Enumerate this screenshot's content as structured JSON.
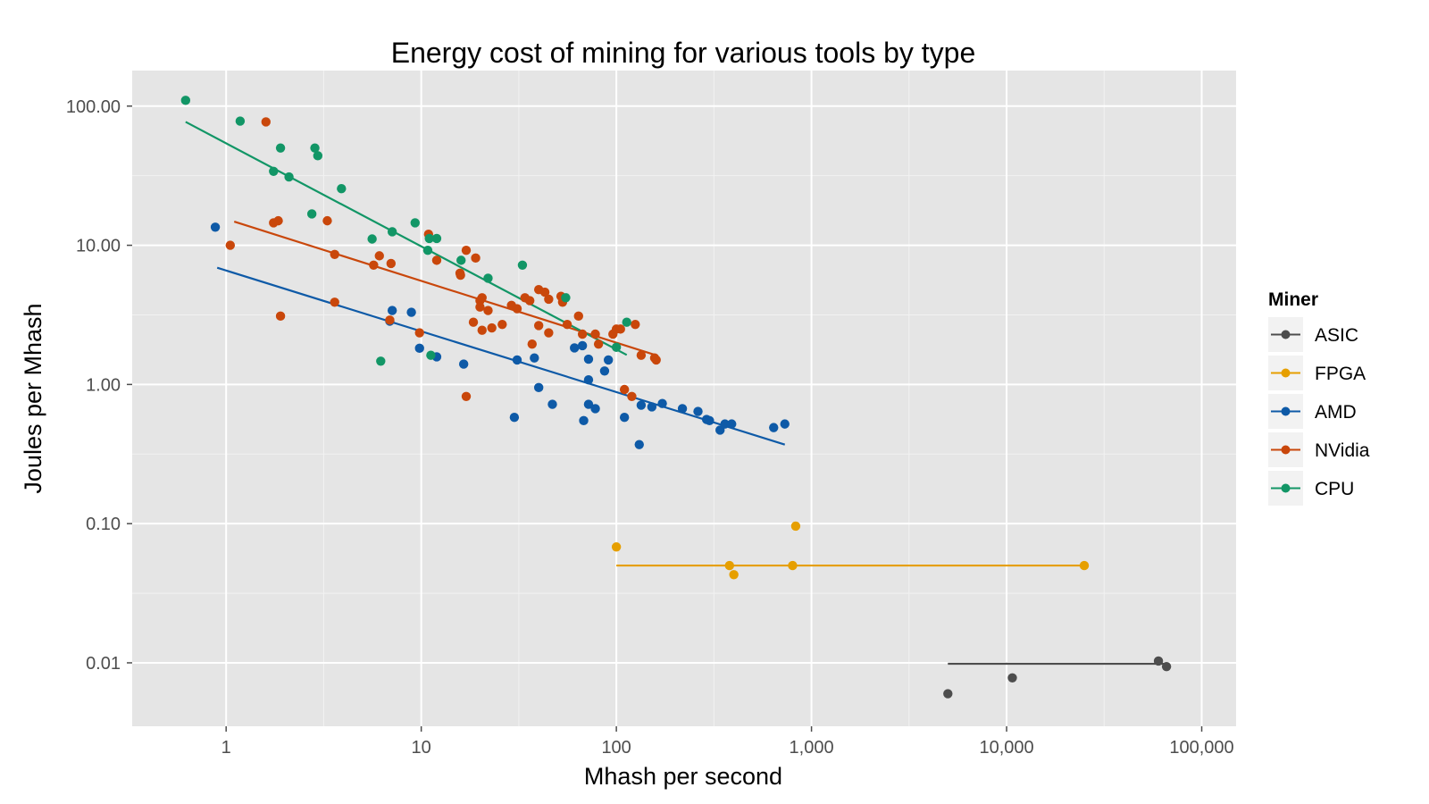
{
  "chart_data": {
    "type": "scatter",
    "title": "Energy cost of mining for various tools by type",
    "xlabel": "Mhash per second",
    "ylabel": "Joules per Mhash",
    "x_scale": "log10",
    "y_scale": "log10",
    "xlim": [
      0.33,
      150000
    ],
    "ylim": [
      0.0035,
      180
    ],
    "x_ticks": [
      1,
      10,
      100,
      1000,
      10000,
      100000
    ],
    "x_tick_labels": [
      "1",
      "10",
      "100",
      "1,000",
      "10,000",
      "100,000"
    ],
    "y_ticks": [
      0.01,
      0.1,
      1,
      10,
      100
    ],
    "y_tick_labels": [
      "0.01",
      "0.10",
      "1.00",
      "10.00",
      "100.00"
    ],
    "grid": true,
    "legend": {
      "title": "Miner",
      "position": "right"
    },
    "series": [
      {
        "name": "ASIC",
        "color": "#4d4d4d",
        "fit": [
          [
            5000,
            0.00985
          ],
          [
            66000,
            0.00985
          ]
        ],
        "points": [
          [
            5000,
            0.006
          ],
          [
            10700,
            0.0078
          ],
          [
            60000,
            0.0103
          ],
          [
            66000,
            0.0094
          ]
        ]
      },
      {
        "name": "FPGA",
        "color": "#e69f00",
        "fit": [
          [
            100,
            0.05
          ],
          [
            25000,
            0.05
          ]
        ],
        "points": [
          [
            100,
            0.068
          ],
          [
            380,
            0.05
          ],
          [
            400,
            0.043
          ],
          [
            800,
            0.05
          ],
          [
            830,
            0.096
          ],
          [
            25000,
            0.05
          ]
        ]
      },
      {
        "name": "AMD",
        "color": "#0e5aa7",
        "fit": [
          [
            0.9,
            6.9
          ],
          [
            730,
            0.37
          ]
        ],
        "points": [
          [
            0.88,
            13.5
          ],
          [
            7.1,
            3.4
          ],
          [
            8.9,
            3.3
          ],
          [
            6.9,
            2.85
          ],
          [
            9.8,
            1.82
          ],
          [
            12,
            1.58
          ],
          [
            16.5,
            1.4
          ],
          [
            30,
            0.58
          ],
          [
            31,
            1.5
          ],
          [
            38,
            1.55
          ],
          [
            40,
            0.95
          ],
          [
            47,
            0.72
          ],
          [
            61,
            1.83
          ],
          [
            67,
            1.9
          ],
          [
            72,
            1.52
          ],
          [
            72,
            1.08
          ],
          [
            72,
            0.72
          ],
          [
            68,
            0.55
          ],
          [
            78,
            0.67
          ],
          [
            87,
            1.25
          ],
          [
            91,
            1.5
          ],
          [
            110,
            0.58
          ],
          [
            131,
            0.37
          ],
          [
            134,
            0.71
          ],
          [
            152,
            0.69
          ],
          [
            172,
            0.73
          ],
          [
            218,
            0.67
          ],
          [
            262,
            0.64
          ],
          [
            290,
            0.56
          ],
          [
            300,
            0.55
          ],
          [
            340,
            0.47
          ],
          [
            360,
            0.52
          ],
          [
            390,
            0.52
          ],
          [
            640,
            0.49
          ],
          [
            730,
            0.52
          ]
        ]
      },
      {
        "name": "NVidia",
        "color": "#c9470b",
        "fit": [
          [
            1.1,
            14.8
          ],
          [
            160,
            1.62
          ]
        ],
        "points": [
          [
            1.05,
            10
          ],
          [
            1.6,
            77
          ],
          [
            1.75,
            14.5
          ],
          [
            1.85,
            15
          ],
          [
            1.9,
            3.1
          ],
          [
            3.3,
            15
          ],
          [
            3.6,
            8.6
          ],
          [
            3.6,
            3.9
          ],
          [
            5.7,
            7.2
          ],
          [
            6.1,
            8.4
          ],
          [
            7,
            7.4
          ],
          [
            6.9,
            2.9
          ],
          [
            9.8,
            2.35
          ],
          [
            10.9,
            12
          ],
          [
            12,
            7.8
          ],
          [
            15.8,
            6.3
          ],
          [
            15.9,
            6.1
          ],
          [
            17,
            9.2
          ],
          [
            17,
            0.82
          ],
          [
            18.5,
            2.8
          ],
          [
            19,
            8.1
          ],
          [
            20,
            4
          ],
          [
            20,
            3.6
          ],
          [
            20.5,
            4.2
          ],
          [
            20.5,
            2.45
          ],
          [
            22,
            3.4
          ],
          [
            23,
            2.55
          ],
          [
            26,
            2.7
          ],
          [
            29,
            3.7
          ],
          [
            31,
            3.5
          ],
          [
            34,
            4.2
          ],
          [
            36,
            4
          ],
          [
            37,
            1.95
          ],
          [
            40,
            2.65
          ],
          [
            40,
            4.8
          ],
          [
            43,
            4.6
          ],
          [
            45,
            4.1
          ],
          [
            45,
            2.35
          ],
          [
            52,
            4.3
          ],
          [
            53,
            3.9
          ],
          [
            56,
            2.7
          ],
          [
            64,
            3.1
          ],
          [
            67,
            2.3
          ],
          [
            78,
            2.3
          ],
          [
            81,
            1.95
          ],
          [
            96,
            2.3
          ],
          [
            100,
            2.5
          ],
          [
            105,
            2.5
          ],
          [
            110,
            0.92
          ],
          [
            120,
            0.82
          ],
          [
            125,
            2.7
          ],
          [
            134,
            1.62
          ],
          [
            157,
            1.55
          ],
          [
            160,
            1.5
          ]
        ]
      },
      {
        "name": "CPU",
        "color": "#129666",
        "fit": [
          [
            0.62,
            77
          ],
          [
            113,
            1.63
          ]
        ],
        "points": [
          [
            0.62,
            110
          ],
          [
            1.18,
            78
          ],
          [
            1.75,
            34
          ],
          [
            1.9,
            50
          ],
          [
            2.1,
            31
          ],
          [
            2.75,
            16.8
          ],
          [
            2.85,
            50
          ],
          [
            2.95,
            44
          ],
          [
            3.9,
            25.5
          ],
          [
            5.6,
            11.1
          ],
          [
            6.2,
            1.47
          ],
          [
            7.1,
            12.5
          ],
          [
            9.3,
            14.5
          ],
          [
            10.8,
            9.2
          ],
          [
            11,
            11.2
          ],
          [
            11.2,
            1.62
          ],
          [
            12,
            11.2
          ],
          [
            16,
            7.8
          ],
          [
            22,
            5.8
          ],
          [
            33,
            7.2
          ],
          [
            55,
            4.2
          ],
          [
            100,
            1.85
          ],
          [
            113,
            2.8
          ]
        ]
      }
    ]
  }
}
